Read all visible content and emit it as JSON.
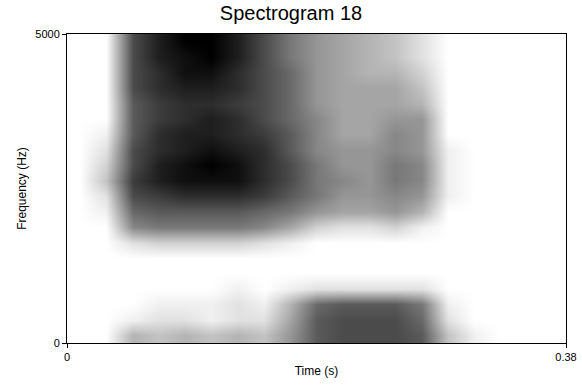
{
  "chart_data": {
    "type": "heatmap",
    "title": "Spectrogram 18",
    "x_label": "Time (s)",
    "y_label": "Frequency (Hz)",
    "color": "#000000",
    "x": [
      0.01,
      0.03,
      0.05,
      0.07,
      0.09,
      0.11,
      0.13,
      0.15,
      0.17,
      0.19,
      0.21,
      0.23,
      0.25,
      0.27,
      0.29,
      0.31,
      0.33,
      0.35,
      0.37
    ],
    "y": [
      125,
      375,
      625,
      875,
      1125,
      1375,
      1625,
      1875,
      2125,
      2375,
      2625,
      2875,
      3125,
      3375,
      3625,
      3875,
      4125,
      4375,
      4625,
      4875
    ],
    "z": [
      [
        0,
        0,
        0.25,
        0.2,
        0.25,
        0.2,
        0.25,
        0.2,
        0.35,
        0.55,
        0.6,
        0.6,
        0.6,
        0.55,
        0.2,
        0.05,
        0,
        0,
        0
      ],
      [
        0,
        0,
        0.05,
        0.1,
        0.1,
        0.05,
        0.1,
        0.1,
        0.3,
        0.55,
        0.6,
        0.6,
        0.6,
        0.5,
        0.1,
        0,
        0,
        0,
        0
      ],
      [
        0,
        0,
        0,
        0.05,
        0.05,
        0.05,
        0.1,
        0.05,
        0.25,
        0.5,
        0.55,
        0.55,
        0.55,
        0.45,
        0.05,
        0,
        0,
        0,
        0
      ],
      [
        0,
        0,
        0,
        0,
        0,
        0,
        0.05,
        0,
        0.05,
        0.1,
        0.1,
        0.1,
        0.1,
        0.1,
        0,
        0,
        0,
        0,
        0
      ],
      [
        0,
        0,
        0,
        0,
        0,
        0,
        0,
        0,
        0,
        0,
        0,
        0,
        0,
        0,
        0,
        0,
        0,
        0,
        0
      ],
      [
        0,
        0,
        0,
        0,
        0,
        0,
        0,
        0,
        0,
        0,
        0,
        0,
        0,
        0,
        0,
        0,
        0,
        0,
        0
      ],
      [
        0,
        0,
        0.1,
        0.15,
        0.15,
        0.15,
        0.15,
        0.1,
        0.05,
        0,
        0,
        0,
        0,
        0,
        0,
        0,
        0,
        0,
        0
      ],
      [
        0,
        0,
        0.4,
        0.45,
        0.45,
        0.45,
        0.45,
        0.4,
        0.3,
        0.15,
        0.1,
        0.1,
        0.15,
        0.05,
        0,
        0,
        0,
        0,
        0
      ],
      [
        0,
        0.05,
        0.5,
        0.55,
        0.55,
        0.55,
        0.55,
        0.5,
        0.45,
        0.35,
        0.3,
        0.3,
        0.35,
        0.25,
        0,
        0,
        0,
        0,
        0
      ],
      [
        0,
        0.1,
        0.6,
        0.65,
        0.7,
        0.7,
        0.7,
        0.65,
        0.55,
        0.45,
        0.35,
        0.35,
        0.4,
        0.35,
        0.05,
        0,
        0,
        0,
        0
      ],
      [
        0,
        0.2,
        0.65,
        0.75,
        0.8,
        0.8,
        0.8,
        0.7,
        0.6,
        0.45,
        0.4,
        0.35,
        0.45,
        0.4,
        0.05,
        0,
        0,
        0,
        0
      ],
      [
        0,
        0.15,
        0.6,
        0.75,
        0.8,
        0.85,
        0.8,
        0.7,
        0.6,
        0.45,
        0.35,
        0.35,
        0.45,
        0.4,
        0.05,
        0,
        0,
        0,
        0
      ],
      [
        0,
        0.1,
        0.6,
        0.7,
        0.75,
        0.8,
        0.75,
        0.7,
        0.55,
        0.4,
        0.35,
        0.35,
        0.4,
        0.35,
        0.05,
        0,
        0,
        0,
        0
      ],
      [
        0,
        0.05,
        0.55,
        0.7,
        0.75,
        0.75,
        0.7,
        0.65,
        0.55,
        0.4,
        0.3,
        0.3,
        0.4,
        0.35,
        0,
        0,
        0,
        0,
        0
      ],
      [
        0,
        0,
        0.55,
        0.65,
        0.7,
        0.75,
        0.7,
        0.6,
        0.5,
        0.4,
        0.3,
        0.3,
        0.35,
        0.35,
        0,
        0,
        0,
        0,
        0
      ],
      [
        0,
        0,
        0.55,
        0.65,
        0.7,
        0.7,
        0.65,
        0.6,
        0.5,
        0.35,
        0.3,
        0.3,
        0.3,
        0.25,
        0,
        0,
        0,
        0,
        0
      ],
      [
        0,
        0,
        0.6,
        0.7,
        0.75,
        0.75,
        0.7,
        0.6,
        0.5,
        0.35,
        0.3,
        0.3,
        0.3,
        0.2,
        0,
        0,
        0,
        0,
        0
      ],
      [
        0,
        0,
        0.6,
        0.7,
        0.8,
        0.8,
        0.7,
        0.6,
        0.5,
        0.35,
        0.3,
        0.25,
        0.25,
        0.15,
        0,
        0,
        0,
        0,
        0
      ],
      [
        0,
        0,
        0.6,
        0.75,
        0.8,
        0.85,
        0.75,
        0.6,
        0.45,
        0.35,
        0.3,
        0.25,
        0.2,
        0.1,
        0,
        0,
        0,
        0,
        0
      ],
      [
        0,
        0,
        0.6,
        0.75,
        0.85,
        0.85,
        0.75,
        0.6,
        0.45,
        0.35,
        0.3,
        0.25,
        0.2,
        0.1,
        0,
        0,
        0,
        0,
        0
      ]
    ],
    "xlim": [
      0,
      0.38
    ],
    "ylim": [
      0,
      5000
    ],
    "xticks": [
      0,
      0.38
    ],
    "yticks": [
      0,
      5000
    ]
  }
}
